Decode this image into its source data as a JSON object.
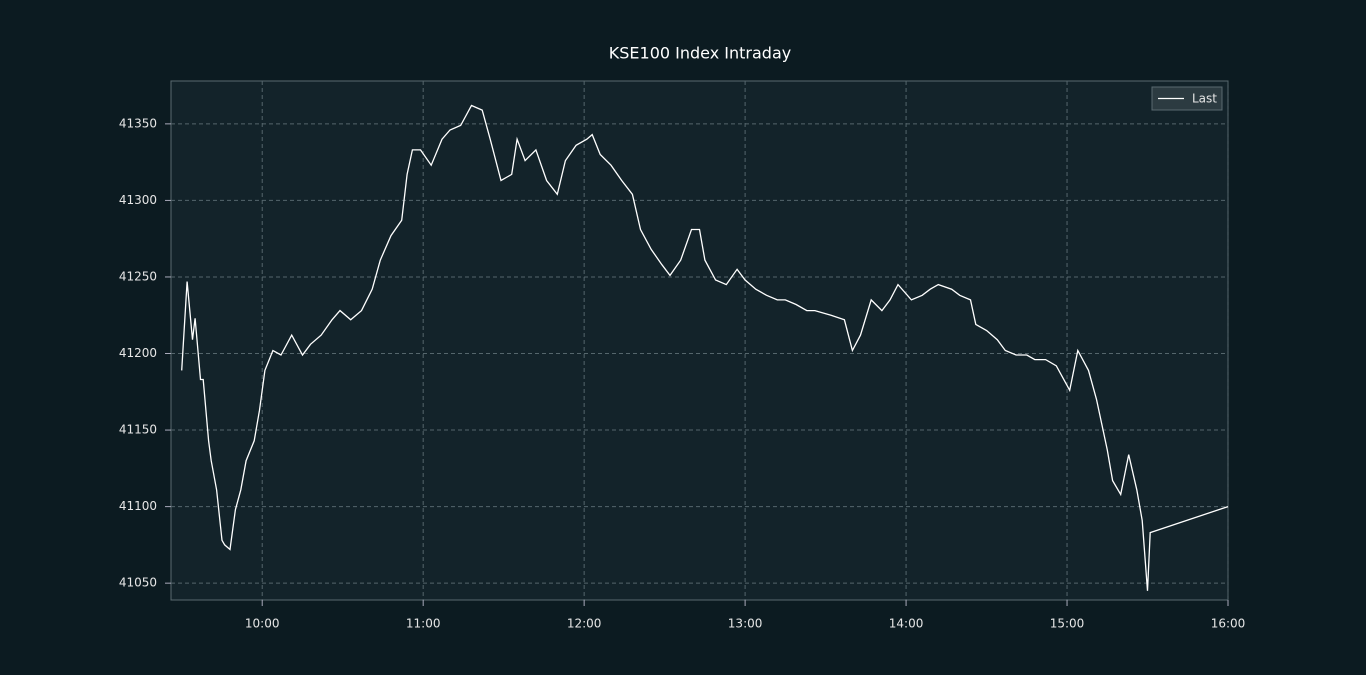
{
  "chart_data": {
    "type": "line",
    "title": "KSE100 Index Intraday",
    "x": [
      "09:30",
      "09:32",
      "09:34",
      "09:35",
      "09:37",
      "09:38",
      "09:40",
      "09:41",
      "09:43",
      "09:45",
      "09:46",
      "09:48",
      "09:50",
      "09:52",
      "09:54",
      "09:57",
      "09:59",
      "10:01",
      "10:04",
      "10:07",
      "10:11",
      "10:15",
      "10:18",
      "10:22",
      "10:26",
      "10:29",
      "10:33",
      "10:37",
      "10:41",
      "10:44",
      "10:48",
      "10:52",
      "10:54",
      "10:56",
      "10:59",
      "11:03",
      "11:07",
      "11:10",
      "11:14",
      "11:18",
      "11:22",
      "11:25",
      "11:29",
      "11:33",
      "11:35",
      "11:38",
      "11:42",
      "11:46",
      "11:50",
      "11:53",
      "11:57",
      "12:01",
      "12:03",
      "12:06",
      "12:10",
      "12:14",
      "12:18",
      "12:21",
      "12:25",
      "12:29",
      "12:32",
      "12:36",
      "12:40",
      "12:43",
      "12:45",
      "12:49",
      "12:53",
      "12:57",
      "13:00",
      "13:04",
      "13:08",
      "13:12",
      "13:15",
      "13:19",
      "13:23",
      "13:26",
      "13:32",
      "13:37",
      "13:40",
      "13:43",
      "13:47",
      "13:51",
      "13:54",
      "13:57",
      "14:02",
      "14:06",
      "14:09",
      "14:12",
      "14:17",
      "14:20",
      "14:24",
      "14:26",
      "14:30",
      "14:34",
      "14:37",
      "14:41",
      "14:45",
      "14:48",
      "14:52",
      "14:56",
      "15:01",
      "15:04",
      "15:08",
      "15:11",
      "15:15",
      "15:17",
      "15:20",
      "15:23",
      "15:26",
      "15:28",
      "15:30",
      "15:31",
      "16:00"
    ],
    "series": [
      {
        "name": "Last",
        "color": "#ffffff",
        "values": [
          41189,
          41247,
          41209,
          41223,
          41183,
          41183,
          41143,
          41130,
          41111,
          41078,
          41075,
          41072,
          41098,
          41111,
          41130,
          41143,
          41163,
          41189,
          41202,
          41199,
          41212,
          41199,
          41206,
          41212,
          41222,
          41228,
          41222,
          41228,
          41242,
          41261,
          41277,
          41287,
          41317,
          41333,
          41333,
          41323,
          41340,
          41346,
          41349,
          41362,
          41359,
          41340,
          41313,
          41317,
          41340,
          41326,
          41333,
          41313,
          41304,
          41326,
          41336,
          41340,
          41343,
          41330,
          41323,
          41313,
          41304,
          41281,
          41268,
          41258,
          41251,
          41261,
          41281,
          41281,
          41261,
          41248,
          41245,
          41255,
          41248,
          41242,
          41238,
          41235,
          41235,
          41232,
          41228,
          41228,
          41225,
          41222,
          41202,
          41212,
          41235,
          41228,
          41235,
          41245,
          41235,
          41238,
          41242,
          41245,
          41242,
          41238,
          41235,
          41219,
          41215,
          41209,
          41202,
          41199,
          41199,
          41196,
          41196,
          41192,
          41176,
          41202,
          41189,
          41170,
          41137,
          41117,
          41108,
          41134,
          41111,
          41091,
          41045,
          41083,
          41100
        ]
      }
    ],
    "xlim": [
      "09:26",
      "16:00"
    ],
    "xticks": [
      "10:00",
      "11:00",
      "12:00",
      "13:00",
      "14:00",
      "15:00",
      "16:00"
    ],
    "ylim": [
      41039,
      41378
    ],
    "yticks": [
      41050,
      41100,
      41150,
      41200,
      41250,
      41300,
      41350
    ],
    "grid": true,
    "legend": "upper right"
  }
}
